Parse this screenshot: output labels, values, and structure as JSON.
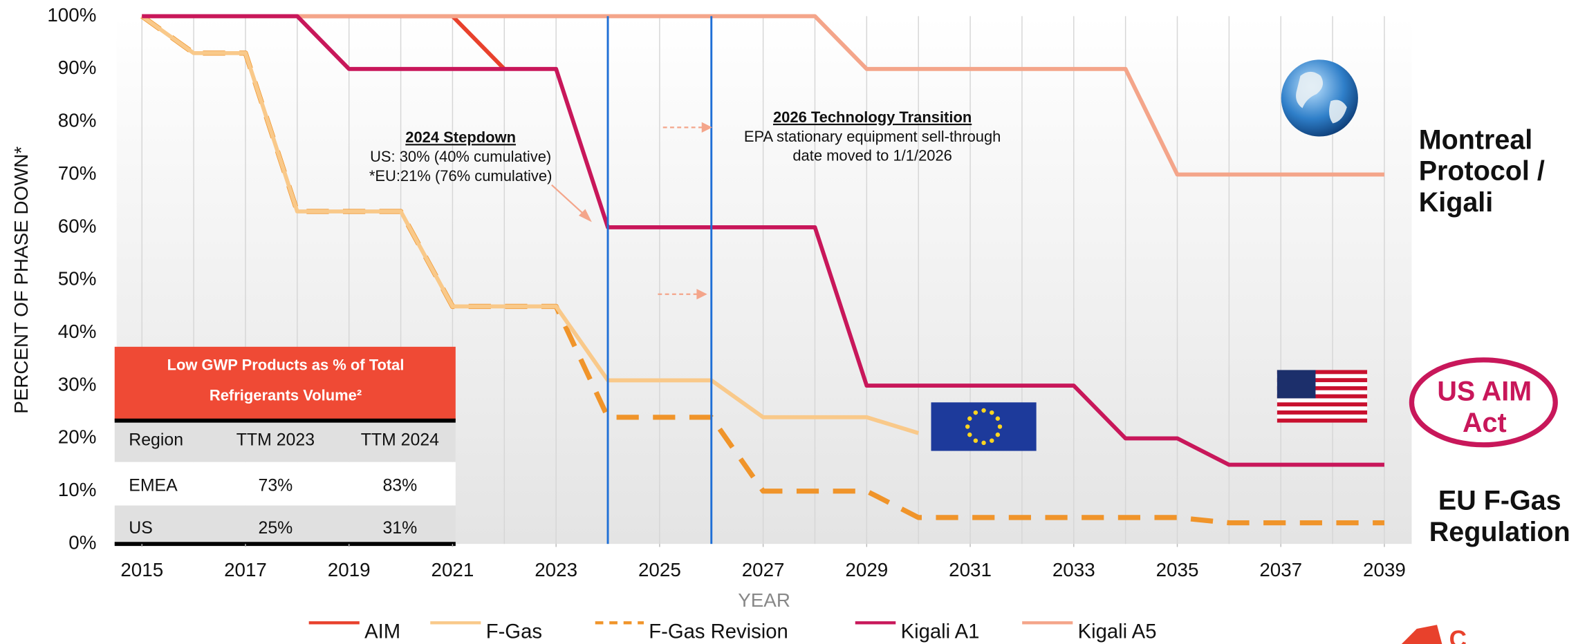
{
  "chart_data": {
    "type": "line",
    "y_label": "PERCENT OF PHASE DOWN*",
    "x_label": "YEAR",
    "x": [
      2015,
      2016,
      2017,
      2018,
      2019,
      2020,
      2021,
      2022,
      2023,
      2024,
      2025,
      2026,
      2027,
      2028,
      2029,
      2030,
      2031,
      2032,
      2033,
      2034,
      2035,
      2036,
      2037,
      2038,
      2039
    ],
    "xlim": [
      2015,
      2039
    ],
    "xticks": [
      2015,
      2017,
      2019,
      2021,
      2023,
      2025,
      2027,
      2029,
      2031,
      2033,
      2035,
      2037,
      2039
    ],
    "ylim": [
      0,
      100
    ],
    "yticks": [
      {
        "value": 0,
        "label": "0%"
      },
      {
        "value": 10,
        "label": "10%"
      },
      {
        "value": 20,
        "label": "20%"
      },
      {
        "value": 30,
        "label": "30%"
      },
      {
        "value": 40,
        "label": "40%"
      },
      {
        "value": 50,
        "label": "50%"
      },
      {
        "value": 60,
        "label": "60%"
      },
      {
        "value": 70,
        "label": "70%"
      },
      {
        "value": 80,
        "label": "80%"
      },
      {
        "value": 90,
        "label": "90%"
      },
      {
        "value": 100,
        "label": "100%"
      }
    ],
    "grid": "x",
    "vlines": [
      2024,
      2026
    ],
    "vline_color": "#1f6fd6",
    "series": [
      {
        "name": "AIM",
        "color": "#e8412c",
        "dash": false,
        "values": [
          100,
          100,
          100,
          100,
          100,
          100,
          100,
          90,
          null,
          null,
          null,
          null,
          null,
          null,
          null,
          null,
          null,
          null,
          null,
          null,
          null,
          null,
          null,
          null,
          null
        ]
      },
      {
        "name": "F-Gas",
        "color": "#f9c98a",
        "dash": false,
        "values": [
          100,
          93,
          93,
          63,
          63,
          63,
          45,
          45,
          45,
          31,
          31,
          31,
          24,
          24,
          24,
          21,
          null,
          null,
          null,
          null,
          null,
          null,
          null,
          null,
          null
        ]
      },
      {
        "name": "F-Gas Revision",
        "color": "#f0942a",
        "dash": true,
        "values": [
          100,
          93,
          93,
          63,
          63,
          63,
          45,
          45,
          45,
          24,
          24,
          24,
          10,
          10,
          10,
          5,
          5,
          5,
          5,
          5,
          5,
          4,
          4,
          4,
          4
        ]
      },
      {
        "name": "Kigali A1",
        "color": "#c8175a",
        "dash": false,
        "values": [
          100,
          100,
          100,
          100,
          90,
          90,
          90,
          90,
          90,
          60,
          60,
          60,
          60,
          60,
          30,
          30,
          30,
          30,
          30,
          20,
          20,
          15,
          15,
          15,
          15
        ]
      },
      {
        "name": "Kigali A5",
        "color": "#f4a58a",
        "dash": false,
        "values": [
          100,
          100,
          100,
          100,
          100,
          100,
          100,
          100,
          100,
          100,
          100,
          100,
          100,
          100,
          90,
          90,
          90,
          90,
          90,
          90,
          70,
          70,
          70,
          70,
          70
        ]
      }
    ],
    "annotations": [
      {
        "title": "2024 Stepdown",
        "lines": [
          "US: 30% (40% cumulative)",
          "*EU:21% (76% cumulative)"
        ]
      },
      {
        "title": "2026 Technology Transition",
        "lines": [
          "EPA stationary equipment sell-through",
          "date moved to 1/1/2026"
        ]
      }
    ],
    "region_labels": [
      {
        "lines": [
          "Montreal",
          "Protocol /",
          "Kigali"
        ]
      },
      {
        "lines": [
          "US AIM",
          "Act"
        ]
      },
      {
        "lines": [
          "EU F-Gas",
          "Regulation"
        ]
      }
    ]
  },
  "table": {
    "title": [
      "Low GWP Products as % of Total",
      "Refrigerants Volume²"
    ],
    "header": [
      "Region",
      "TTM 2023",
      "TTM 2024"
    ],
    "rows": [
      [
        "EMEA",
        "73%",
        "83%"
      ],
      [
        "US",
        "25%",
        "31%"
      ]
    ]
  }
}
